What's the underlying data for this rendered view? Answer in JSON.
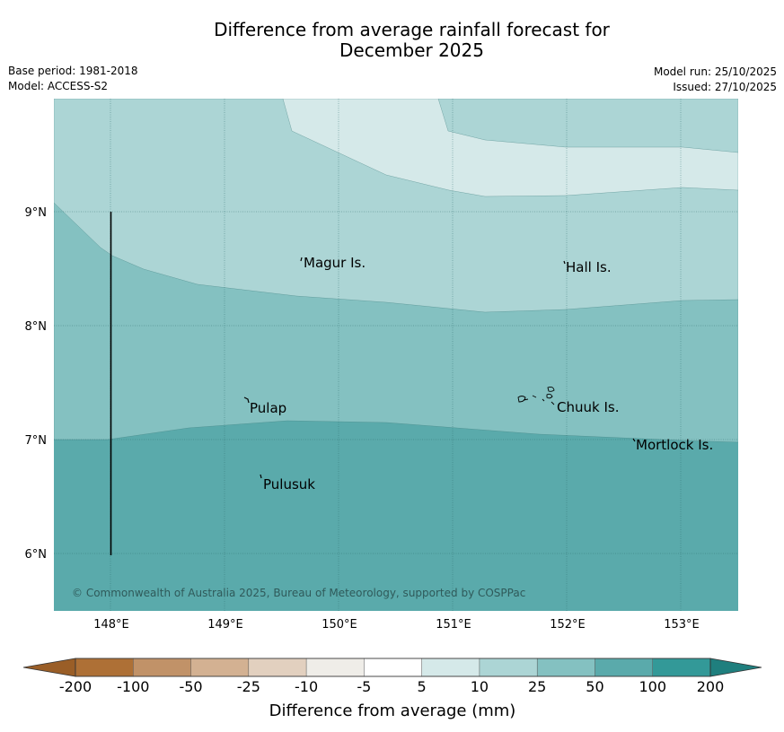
{
  "header": {
    "title_line1": "Difference from average rainfall forecast for",
    "title_line2": "December 2025",
    "base_period": "Base period: 1981-2018",
    "model": "Model: ACCESS-S2",
    "model_run": "Model run: 25/10/2025",
    "issued": "Issued: 27/10/2025"
  },
  "map": {
    "lat_labels": [
      "9°N",
      "8°N",
      "7°N",
      "6°N"
    ],
    "lon_labels": [
      "148°E",
      "149°E",
      "150°E",
      "151°E",
      "152°E",
      "153°E"
    ],
    "places": [
      {
        "name": "Magur Is."
      },
      {
        "name": "Hall Is."
      },
      {
        "name": "Pulap"
      },
      {
        "name": "Chuuk Is."
      },
      {
        "name": "Mortlock Is."
      },
      {
        "name": "Pulusuk"
      }
    ],
    "copyright": "© Commonwealth of Australia 2025, Bureau of Meteorology, supported by COSPPac",
    "region_colors": {
      "5_to_10": "#d5e9e9",
      "10_to_25": "#acd5d5",
      "25_to_50": "#84c1c1",
      "50_to_100": "#5aaaab"
    }
  },
  "colorbar": {
    "title": "Difference from average (mm)",
    "ticks": [
      "-200",
      "-100",
      "-50",
      "-25",
      "-10",
      "-5",
      "5",
      "10",
      "25",
      "50",
      "100",
      "200"
    ],
    "colors": [
      "#ae7036",
      "#c19268",
      "#d3b192",
      "#e2d0bf",
      "#efede8",
      "#ffffff",
      "#d5e9e9",
      "#acd5d5",
      "#84c1c1",
      "#5aaaab",
      "#339998"
    ],
    "low_extend_color": "#9a5e27",
    "high_extend_color": "#1f7f7e"
  }
}
